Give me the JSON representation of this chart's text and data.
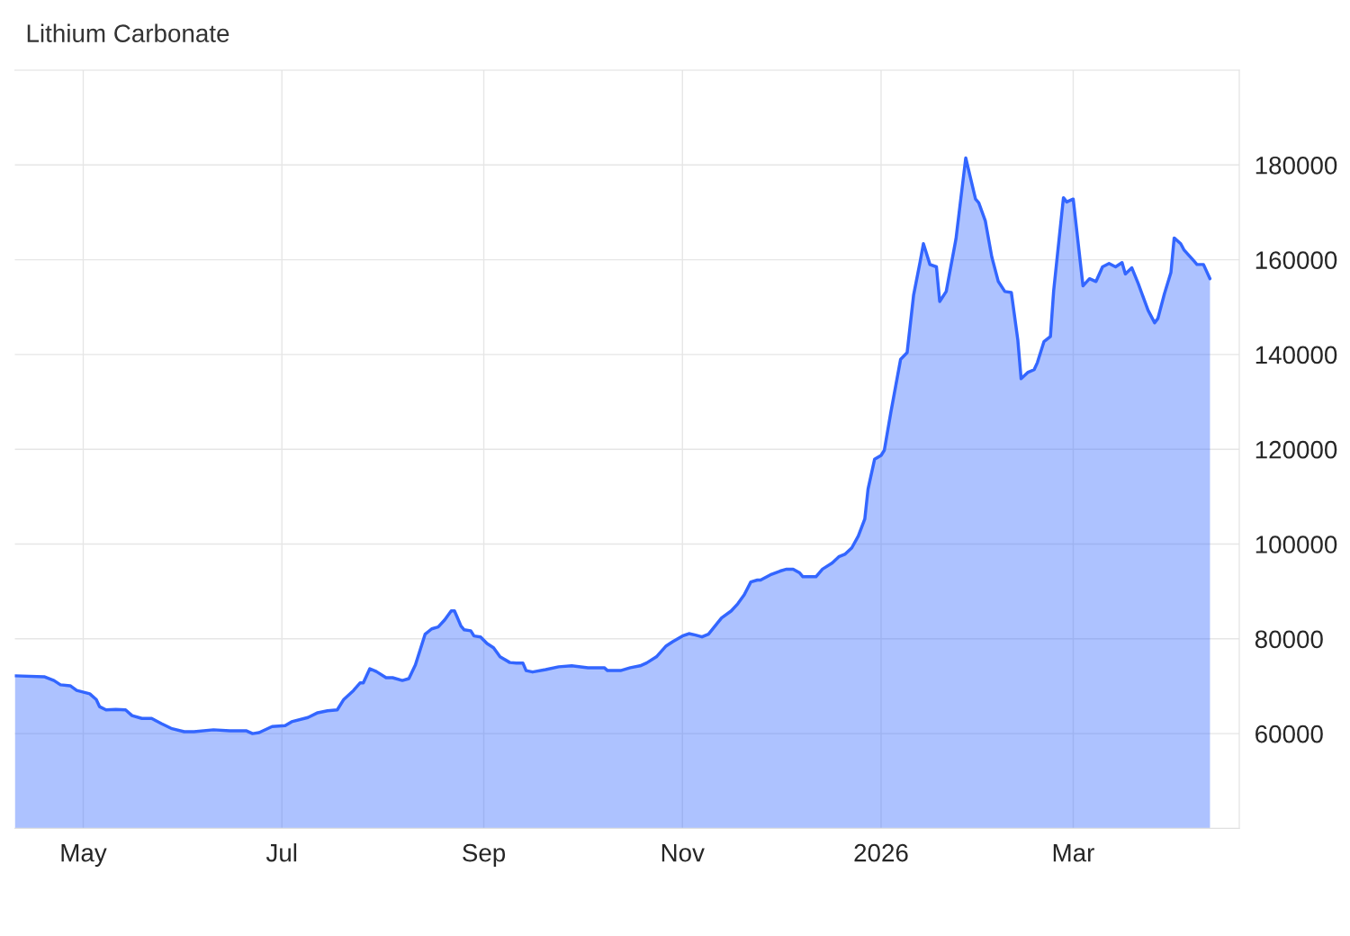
{
  "chart_data": {
    "type": "area",
    "title": "Lithium Carbonate",
    "x": [
      "2025-04-10",
      "2025-04-19",
      "2025-04-22",
      "2025-04-24",
      "2025-04-27",
      "2025-04-29",
      "2025-05-03",
      "2025-05-05",
      "2025-05-06",
      "2025-05-08",
      "2025-05-11",
      "2025-05-14",
      "2025-05-16",
      "2025-05-19",
      "2025-05-22",
      "2025-05-25",
      "2025-05-28",
      "2025-06-01",
      "2025-06-04",
      "2025-06-10",
      "2025-06-15",
      "2025-06-20",
      "2025-06-22",
      "2025-06-24",
      "2025-06-28",
      "2025-07-02",
      "2025-07-04",
      "2025-07-09",
      "2025-07-12",
      "2025-07-15",
      "2025-07-18",
      "2025-07-20",
      "2025-07-23",
      "2025-07-25",
      "2025-07-26",
      "2025-07-28",
      "2025-07-30",
      "2025-08-02",
      "2025-08-04",
      "2025-08-07",
      "2025-08-09",
      "2025-08-11",
      "2025-08-14",
      "2025-08-16",
      "2025-08-18",
      "2025-08-20",
      "2025-08-22",
      "2025-08-23",
      "2025-08-25",
      "2025-08-26",
      "2025-08-28",
      "2025-08-29",
      "2025-08-31",
      "2025-09-02",
      "2025-09-04",
      "2025-09-06",
      "2025-09-09",
      "2025-09-11",
      "2025-09-13",
      "2025-09-14",
      "2025-09-16",
      "2025-09-20",
      "2025-09-24",
      "2025-09-28",
      "2025-10-03",
      "2025-10-08",
      "2025-10-09",
      "2025-10-13",
      "2025-10-16",
      "2025-10-19",
      "2025-10-21",
      "2025-10-24",
      "2025-10-27",
      "2025-10-29",
      "2025-11-01",
      "2025-11-03",
      "2025-11-05",
      "2025-11-07",
      "2025-11-09",
      "2025-11-11",
      "2025-11-13",
      "2025-11-16",
      "2025-11-18",
      "2025-11-20",
      "2025-11-22",
      "2025-11-24",
      "2025-11-25",
      "2025-11-28",
      "2025-12-01",
      "2025-12-03",
      "2025-12-05",
      "2025-12-07",
      "2025-12-08",
      "2025-12-12",
      "2025-12-14",
      "2025-12-17",
      "2025-12-19",
      "2025-12-21",
      "2025-12-23",
      "2025-12-25",
      "2025-12-27",
      "2025-12-28",
      "2025-12-30",
      "2026-01-01",
      "2026-01-02",
      "2026-01-04",
      "2026-01-07",
      "2026-01-09",
      "2026-01-11",
      "2026-01-13",
      "2026-01-14",
      "2026-01-16",
      "2026-01-18",
      "2026-01-19",
      "2026-01-21",
      "2026-01-24",
      "2026-01-27",
      "2026-01-30",
      "2026-01-31",
      "2026-02-02",
      "2026-02-04",
      "2026-02-06",
      "2026-02-08",
      "2026-02-10",
      "2026-02-12",
      "2026-02-13",
      "2026-02-15",
      "2026-02-17",
      "2026-02-18",
      "2026-02-20",
      "2026-02-22",
      "2026-02-23",
      "2026-02-26",
      "2026-02-27",
      "2026-03-01",
      "2026-03-03",
      "2026-03-04",
      "2026-03-06",
      "2026-03-08",
      "2026-03-10",
      "2026-03-12",
      "2026-03-14",
      "2026-03-16",
      "2026-03-17",
      "2026-03-19",
      "2026-03-21",
      "2026-03-24",
      "2026-03-26",
      "2026-03-27",
      "2026-03-29",
      "2026-03-31",
      "2026-04-01",
      "2026-04-03",
      "2026-04-04",
      "2026-04-07",
      "2026-04-08",
      "2026-04-10",
      "2026-04-12"
    ],
    "series": [
      {
        "color": "#3366ff",
        "values": [
          72200,
          72000,
          71200,
          70300,
          70100,
          69100,
          68400,
          67200,
          65700,
          65000,
          65100,
          65000,
          63800,
          63200,
          63200,
          62100,
          61100,
          60400,
          60400,
          60800,
          60600,
          60600,
          60000,
          60200,
          61500,
          61700,
          62500,
          63400,
          64400,
          64800,
          65000,
          67200,
          69100,
          70700,
          70700,
          73700,
          73100,
          71800,
          71800,
          71200,
          71600,
          74500,
          81000,
          82100,
          82500,
          84000,
          85900,
          85900,
          82700,
          81900,
          81700,
          80600,
          80400,
          79000,
          78100,
          76200,
          75000,
          74900,
          74900,
          73300,
          73000,
          73500,
          74100,
          74300,
          73900,
          73900,
          73300,
          73300,
          73900,
          74300,
          74900,
          76200,
          78500,
          79400,
          80600,
          81100,
          80800,
          80400,
          81000,
          82700,
          84400,
          85900,
          87400,
          89300,
          92000,
          92400,
          92400,
          93500,
          94300,
          94700,
          94700,
          93900,
          93100,
          93100,
          94700,
          96000,
          97300,
          97900,
          99200,
          101700,
          105300,
          111600,
          117900,
          118700,
          119800,
          127800,
          139000,
          140400,
          152600,
          159600,
          163400,
          159000,
          158500,
          151200,
          153300,
          164400,
          181500,
          172800,
          172000,
          168200,
          160600,
          155400,
          153300,
          153100,
          143000,
          134900,
          136200,
          136800,
          138300,
          142700,
          143800,
          153500,
          173100,
          172200,
          172800,
          160600,
          154500,
          156000,
          155400,
          158500,
          159200,
          158500,
          159400,
          157000,
          158300,
          154900,
          149300,
          146700,
          147600,
          152800,
          157300,
          164600,
          163400,
          162100,
          159800,
          159000,
          159000,
          156000
        ]
      }
    ],
    "xlim": [
      "2025-04-10",
      "2026-04-21"
    ],
    "xticks": [
      {
        "value": "2025-05-01",
        "label": "May"
      },
      {
        "value": "2025-07-01",
        "label": "Jul"
      },
      {
        "value": "2025-09-01",
        "label": "Sep"
      },
      {
        "value": "2025-11-01",
        "label": "Nov"
      },
      {
        "value": "2026-01-01",
        "label": "2026"
      },
      {
        "value": "2026-03-01",
        "label": "Mar"
      }
    ],
    "ylim": [
      40000,
      200000
    ],
    "yticks": [
      60000,
      80000,
      100000,
      120000,
      140000,
      160000,
      180000
    ],
    "grid": true,
    "line_style": "solid",
    "marker": "none"
  }
}
